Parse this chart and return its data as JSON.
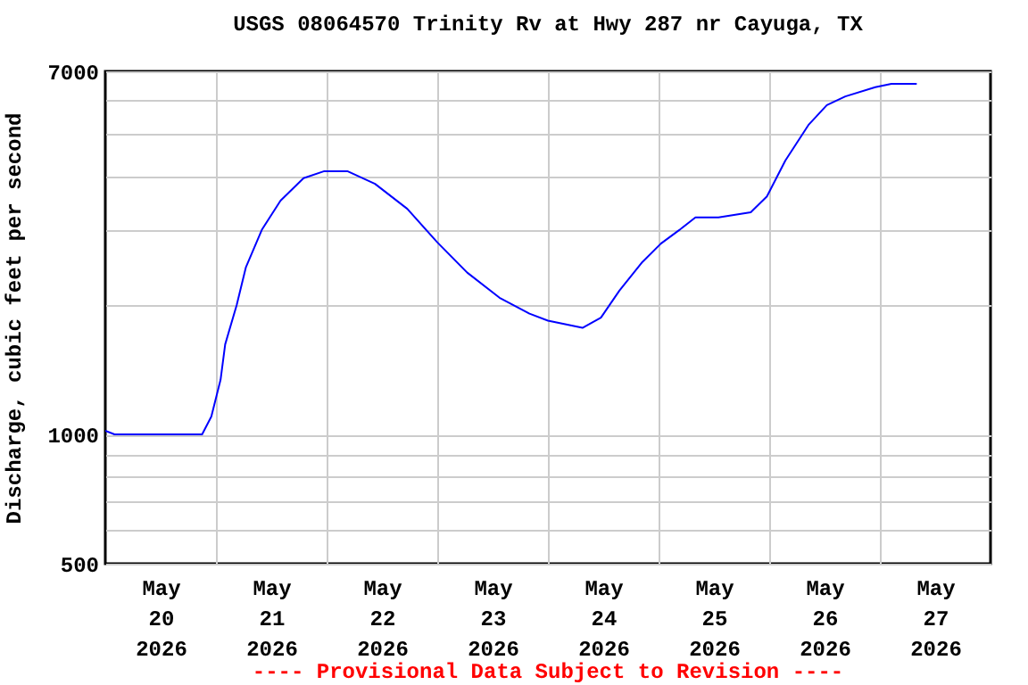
{
  "chart_data": {
    "type": "line",
    "title": "USGS 08064570 Trinity Rv at Hwy 287 nr Cayuga, TX",
    "ylabel": "Discharge, cubic feet per second",
    "annotations": [
      "---- Provisional Data Subject to Revision ----"
    ],
    "x": [
      "2026-05-20T00:00",
      "2026-05-20T02:00",
      "2026-05-20T21:00",
      "2026-05-20T23:00",
      "2026-05-21T01:00",
      "2026-05-21T02:00",
      "2026-05-21T04:30",
      "2026-05-21T06:30",
      "2026-05-21T10:00",
      "2026-05-21T14:00",
      "2026-05-21T19:00",
      "2026-05-21T23:30",
      "2026-05-22T04:30",
      "2026-05-22T10:30",
      "2026-05-22T17:30",
      "2026-05-23T00:00",
      "2026-05-23T06:30",
      "2026-05-23T13:30",
      "2026-05-23T20:00",
      "2026-05-24T00:00",
      "2026-05-24T07:30",
      "2026-05-24T11:30",
      "2026-05-24T15:30",
      "2026-05-24T20:30",
      "2026-05-25T00:30",
      "2026-05-25T04:30",
      "2026-05-25T08:00",
      "2026-05-25T13:00",
      "2026-05-25T20:00",
      "2026-05-25T23:30",
      "2026-05-26T03:30",
      "2026-05-26T08:30",
      "2026-05-26T12:30",
      "2026-05-26T16:30",
      "2026-05-26T23:00",
      "2026-05-27T02:30",
      "2026-05-27T08:00"
    ],
    "series": [
      {
        "color": "#0000ff",
        "values": [
          1020,
          1000,
          1000,
          1100,
          1340,
          1620,
          2000,
          2450,
          3000,
          3500,
          3950,
          4100,
          4100,
          3830,
          3350,
          2800,
          2380,
          2080,
          1910,
          1840,
          1770,
          1870,
          2160,
          2520,
          2780,
          2990,
          3200,
          3200,
          3290,
          3580,
          4340,
          5250,
          5840,
          6120,
          6430,
          6550,
          6550
        ]
      }
    ],
    "xlim": [
      "2026-05-20T00:00",
      "2026-05-28T00:00"
    ],
    "xticks": [
      {
        "value": "2026-05-20T12:00",
        "label": "May 20 2026"
      },
      {
        "value": "2026-05-21T12:00",
        "label": "May 21 2026"
      },
      {
        "value": "2026-05-22T12:00",
        "label": "May 22 2026"
      },
      {
        "value": "2026-05-23T12:00",
        "label": "May 23 2026"
      },
      {
        "value": "2026-05-24T12:00",
        "label": "May 24 2026"
      },
      {
        "value": "2026-05-25T12:00",
        "label": "May 25 2026"
      },
      {
        "value": "2026-05-26T12:00",
        "label": "May 26 2026"
      },
      {
        "value": "2026-05-27T12:00",
        "label": "May 27 2026"
      },
      {
        "value": "2026-05-21T00:00",
        "label": null
      },
      {
        "value": "2026-05-22T00:00",
        "label": null
      },
      {
        "value": "2026-05-23T00:00",
        "label": null
      },
      {
        "value": "2026-05-24T00:00",
        "label": null
      },
      {
        "value": "2026-05-25T00:00",
        "label": null
      },
      {
        "value": "2026-05-26T00:00",
        "label": null
      },
      {
        "value": "2026-05-27T00:00",
        "label": null
      }
    ],
    "ylim": [
      500,
      7000
    ],
    "yticks": [
      500,
      {
        "value": 600,
        "label": null
      },
      {
        "value": 700,
        "label": null
      },
      {
        "value": 800,
        "label": null
      },
      {
        "value": 900,
        "label": null
      },
      1000,
      {
        "value": 2000,
        "label": null
      },
      {
        "value": 3000,
        "label": null
      },
      {
        "value": 4000,
        "label": null
      },
      {
        "value": 5000,
        "label": null
      },
      {
        "value": 6000,
        "label": null
      },
      7000
    ],
    "log": "y",
    "grid": true
  }
}
